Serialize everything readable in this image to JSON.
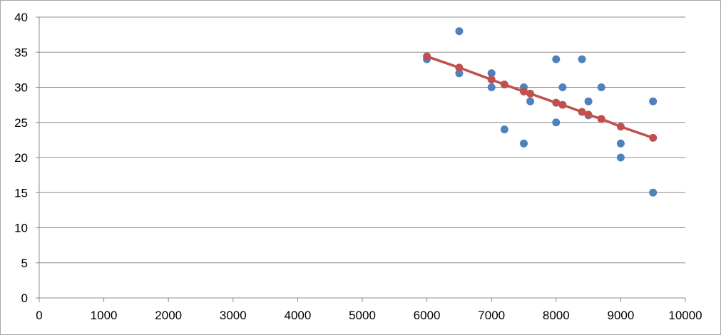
{
  "chart_data": {
    "type": "scatter",
    "title": "",
    "xlabel": "",
    "ylabel": "",
    "xlim": [
      0,
      10000
    ],
    "ylim": [
      0,
      40
    ],
    "x_ticks": [
      0,
      1000,
      2000,
      3000,
      4000,
      5000,
      6000,
      7000,
      8000,
      9000,
      10000
    ],
    "y_ticks": [
      0,
      5,
      10,
      15,
      20,
      25,
      30,
      35,
      40
    ],
    "grid": "horizontal",
    "legend": "none",
    "series": [
      {
        "kind": "scatter",
        "color": "#4f81bd",
        "points": [
          [
            6000,
            34
          ],
          [
            6500,
            38
          ],
          [
            6500,
            32
          ],
          [
            7000,
            32
          ],
          [
            7000,
            30
          ],
          [
            7200,
            24
          ],
          [
            7500,
            30
          ],
          [
            7500,
            22
          ],
          [
            7600,
            28
          ],
          [
            8000,
            34
          ],
          [
            8000,
            25
          ],
          [
            8100,
            30
          ],
          [
            8400,
            34
          ],
          [
            8500,
            28
          ],
          [
            8500,
            26
          ],
          [
            8700,
            30
          ],
          [
            9000,
            22
          ],
          [
            9000,
            20
          ],
          [
            9500,
            28
          ],
          [
            9500,
            15
          ]
        ]
      },
      {
        "kind": "line",
        "color": "#c0504d",
        "points": [
          [
            6000,
            34.4
          ],
          [
            6500,
            32.8
          ],
          [
            7000,
            31.1
          ],
          [
            7200,
            30.4
          ],
          [
            7500,
            29.4
          ],
          [
            7600,
            29.1
          ],
          [
            8000,
            27.8
          ],
          [
            8100,
            27.5
          ],
          [
            8400,
            26.5
          ],
          [
            8500,
            26.1
          ],
          [
            8700,
            25.5
          ],
          [
            9000,
            24.4
          ],
          [
            9500,
            22.8
          ]
        ]
      }
    ]
  }
}
